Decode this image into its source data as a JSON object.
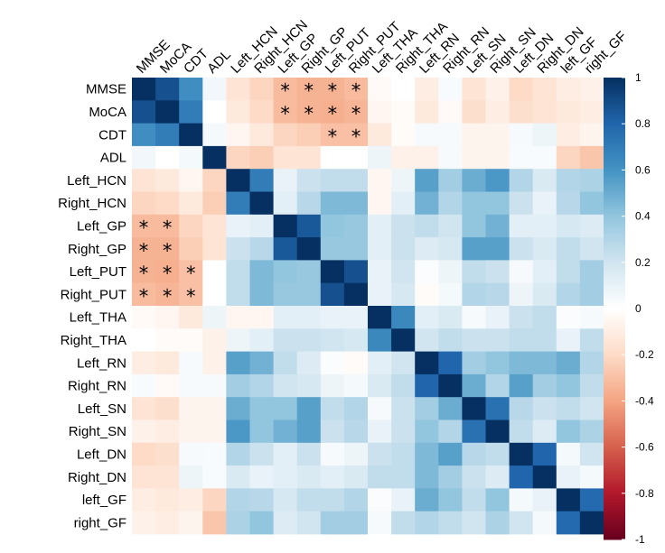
{
  "chart_data": {
    "type": "heatmap",
    "title": "",
    "variables": [
      "MMSE",
      "MoCA",
      "CDT",
      "ADL",
      "Left_HCN",
      "Right_HCN",
      "Left_GP",
      "Right_GP",
      "Left_PUT",
      "Right_PUT",
      "Left_THA",
      "Right_THA",
      "Left_RN",
      "Right_RN",
      "Left_SN",
      "Right_SN",
      "Left_DN",
      "Right_DN",
      "left_GF",
      "right_GF"
    ],
    "row_labels": [
      "MMSE",
      "MoCA",
      "CDT",
      "ADL",
      "Left_HCN",
      "Right_HCN",
      "Left_GP",
      "Right_GP",
      "Left_PUT",
      "Right_PUT",
      "Left_THA",
      "Right_THA",
      "Left_RN",
      "Right_RN",
      "Left_SN",
      "Right_SN",
      "Left_DN",
      "Right_DN",
      "left_GF",
      "right_GF"
    ],
    "column_labels": [
      "MMSE",
      "MoCA",
      "CDT",
      "ADL",
      "Left_HCN",
      "Right_HCN",
      "Left_GP",
      "Right_GP",
      "Left_PUT",
      "Right_PUT",
      "Left_THA",
      "Right_THA",
      "Left_RN",
      "Right_RN",
      "Left_SN",
      "Right_SN",
      "Left_DN",
      "Right_DN",
      "left_GF",
      "right_GF"
    ],
    "matrix": [
      [
        1.0,
        0.88,
        0.62,
        0.06,
        -0.15,
        -0.22,
        -0.32,
        -0.35,
        -0.35,
        -0.32,
        -0.03,
        0.0,
        -0.1,
        0.03,
        -0.15,
        -0.08,
        -0.2,
        -0.15,
        -0.1,
        -0.08
      ],
      [
        0.88,
        1.0,
        0.7,
        0.0,
        -0.12,
        -0.2,
        -0.32,
        -0.35,
        -0.36,
        -0.34,
        -0.05,
        -0.02,
        -0.12,
        -0.03,
        -0.18,
        -0.1,
        -0.18,
        -0.15,
        -0.12,
        -0.1
      ],
      [
        0.62,
        0.7,
        1.0,
        0.05,
        -0.05,
        -0.12,
        -0.22,
        -0.25,
        -0.3,
        -0.3,
        -0.12,
        -0.02,
        0.04,
        0.04,
        -0.06,
        -0.06,
        0.04,
        0.08,
        -0.1,
        -0.06
      ],
      [
        0.06,
        0.0,
        0.05,
        1.0,
        -0.22,
        -0.25,
        -0.15,
        -0.15,
        0.0,
        0.0,
        0.08,
        -0.08,
        -0.08,
        0.04,
        -0.06,
        -0.06,
        0.03,
        0.03,
        -0.22,
        -0.28
      ],
      [
        -0.15,
        -0.12,
        -0.05,
        -0.22,
        1.0,
        0.7,
        0.1,
        0.22,
        0.25,
        0.25,
        -0.05,
        0.08,
        0.55,
        0.35,
        0.5,
        0.58,
        0.3,
        0.16,
        0.3,
        0.32
      ],
      [
        -0.22,
        -0.2,
        -0.12,
        -0.25,
        0.7,
        1.0,
        0.12,
        0.28,
        0.45,
        0.45,
        -0.05,
        0.12,
        0.48,
        0.3,
        0.4,
        0.4,
        0.22,
        0.1,
        0.28,
        0.4
      ],
      [
        -0.32,
        -0.32,
        -0.22,
        -0.15,
        0.1,
        0.12,
        1.0,
        0.85,
        0.4,
        0.38,
        0.12,
        0.22,
        0.25,
        0.2,
        0.4,
        0.48,
        0.12,
        0.12,
        0.18,
        0.15
      ],
      [
        -0.35,
        -0.35,
        -0.25,
        -0.15,
        0.22,
        0.28,
        0.85,
        1.0,
        0.38,
        0.38,
        0.12,
        0.22,
        0.15,
        0.18,
        0.55,
        0.55,
        0.22,
        0.16,
        0.25,
        0.2
      ],
      [
        -0.35,
        -0.36,
        -0.3,
        0.0,
        0.25,
        0.45,
        0.4,
        0.38,
        1.0,
        0.88,
        0.1,
        0.2,
        0.02,
        0.08,
        0.25,
        0.22,
        0.04,
        0.12,
        0.25,
        0.35
      ],
      [
        -0.32,
        -0.34,
        -0.3,
        0.0,
        0.25,
        0.45,
        0.38,
        0.38,
        0.88,
        1.0,
        0.1,
        0.18,
        -0.02,
        0.05,
        0.3,
        0.28,
        0.08,
        0.16,
        0.3,
        0.35
      ],
      [
        -0.03,
        -0.05,
        -0.12,
        0.08,
        -0.05,
        -0.05,
        0.12,
        0.12,
        0.1,
        0.1,
        1.0,
        0.65,
        0.12,
        0.16,
        0.04,
        0.1,
        0.22,
        0.25,
        0.02,
        0.04
      ],
      [
        0.0,
        -0.02,
        -0.02,
        -0.08,
        0.08,
        0.12,
        0.22,
        0.22,
        0.2,
        0.18,
        0.65,
        1.0,
        0.2,
        0.25,
        0.22,
        0.22,
        0.25,
        0.25,
        0.1,
        0.25
      ],
      [
        -0.1,
        -0.12,
        0.04,
        -0.08,
        0.55,
        0.48,
        0.25,
        0.15,
        0.02,
        -0.02,
        0.12,
        0.2,
        1.0,
        0.8,
        0.35,
        0.4,
        0.45,
        0.45,
        0.5,
        0.3
      ],
      [
        0.03,
        -0.03,
        0.04,
        0.04,
        0.35,
        0.3,
        0.2,
        0.18,
        0.08,
        0.05,
        0.16,
        0.25,
        0.8,
        1.0,
        0.5,
        0.3,
        0.55,
        0.35,
        0.4,
        0.25
      ],
      [
        -0.15,
        -0.18,
        -0.06,
        -0.06,
        0.5,
        0.4,
        0.4,
        0.55,
        0.25,
        0.3,
        0.04,
        0.22,
        0.35,
        0.5,
        1.0,
        0.75,
        0.28,
        0.22,
        0.25,
        0.2
      ],
      [
        -0.08,
        -0.1,
        -0.06,
        -0.06,
        0.58,
        0.4,
        0.48,
        0.55,
        0.22,
        0.28,
        0.1,
        0.22,
        0.4,
        0.3,
        0.75,
        1.0,
        0.25,
        0.15,
        0.4,
        0.32
      ],
      [
        -0.2,
        -0.18,
        0.04,
        0.03,
        0.3,
        0.22,
        0.12,
        0.22,
        0.04,
        0.08,
        0.22,
        0.25,
        0.45,
        0.55,
        0.28,
        0.25,
        1.0,
        0.8,
        0.05,
        0.2
      ],
      [
        -0.15,
        -0.15,
        0.08,
        0.03,
        0.16,
        0.1,
        0.12,
        0.16,
        0.12,
        0.16,
        0.25,
        0.25,
        0.45,
        0.35,
        0.22,
        0.15,
        0.8,
        1.0,
        0.1,
        0.05
      ],
      [
        -0.1,
        -0.12,
        -0.1,
        -0.22,
        0.3,
        0.28,
        0.18,
        0.25,
        0.25,
        0.3,
        0.02,
        0.1,
        0.5,
        0.4,
        0.25,
        0.4,
        0.05,
        0.1,
        1.0,
        0.78
      ],
      [
        -0.08,
        -0.1,
        -0.06,
        -0.28,
        0.32,
        0.4,
        0.15,
        0.2,
        0.35,
        0.35,
        0.04,
        0.25,
        0.3,
        0.25,
        0.2,
        0.32,
        0.2,
        0.05,
        0.78,
        1.0
      ]
    ],
    "significant_cells": [
      [
        0,
        6
      ],
      [
        0,
        7
      ],
      [
        0,
        8
      ],
      [
        0,
        9
      ],
      [
        1,
        6
      ],
      [
        1,
        7
      ],
      [
        1,
        8
      ],
      [
        1,
        9
      ],
      [
        2,
        8
      ],
      [
        2,
        9
      ],
      [
        6,
        0
      ],
      [
        6,
        1
      ],
      [
        7,
        0
      ],
      [
        7,
        1
      ],
      [
        8,
        0
      ],
      [
        8,
        1
      ],
      [
        8,
        2
      ],
      [
        9,
        0
      ],
      [
        9,
        1
      ],
      [
        9,
        2
      ]
    ],
    "significance_marker": "*",
    "colorbar": {
      "range": [
        -1,
        1
      ],
      "ticks": [
        1,
        0.8,
        0.6,
        0.4,
        0.2,
        0,
        -0.2,
        -0.4,
        -0.6,
        -0.8,
        -1
      ],
      "tick_labels": [
        "1",
        "0.8",
        "0.6",
        "0.4",
        "0.2",
        "0",
        "-0.2",
        "-0.4",
        "-0.6",
        "-0.8",
        "-1"
      ],
      "colors": [
        "#67001F",
        "#B2182B",
        "#D6604D",
        "#F4A582",
        "#FDDBC7",
        "#FFFFFF",
        "#D1E5F0",
        "#92C5DE",
        "#4393C3",
        "#2166AC",
        "#053061"
      ]
    },
    "xlabel": "",
    "ylabel": ""
  }
}
